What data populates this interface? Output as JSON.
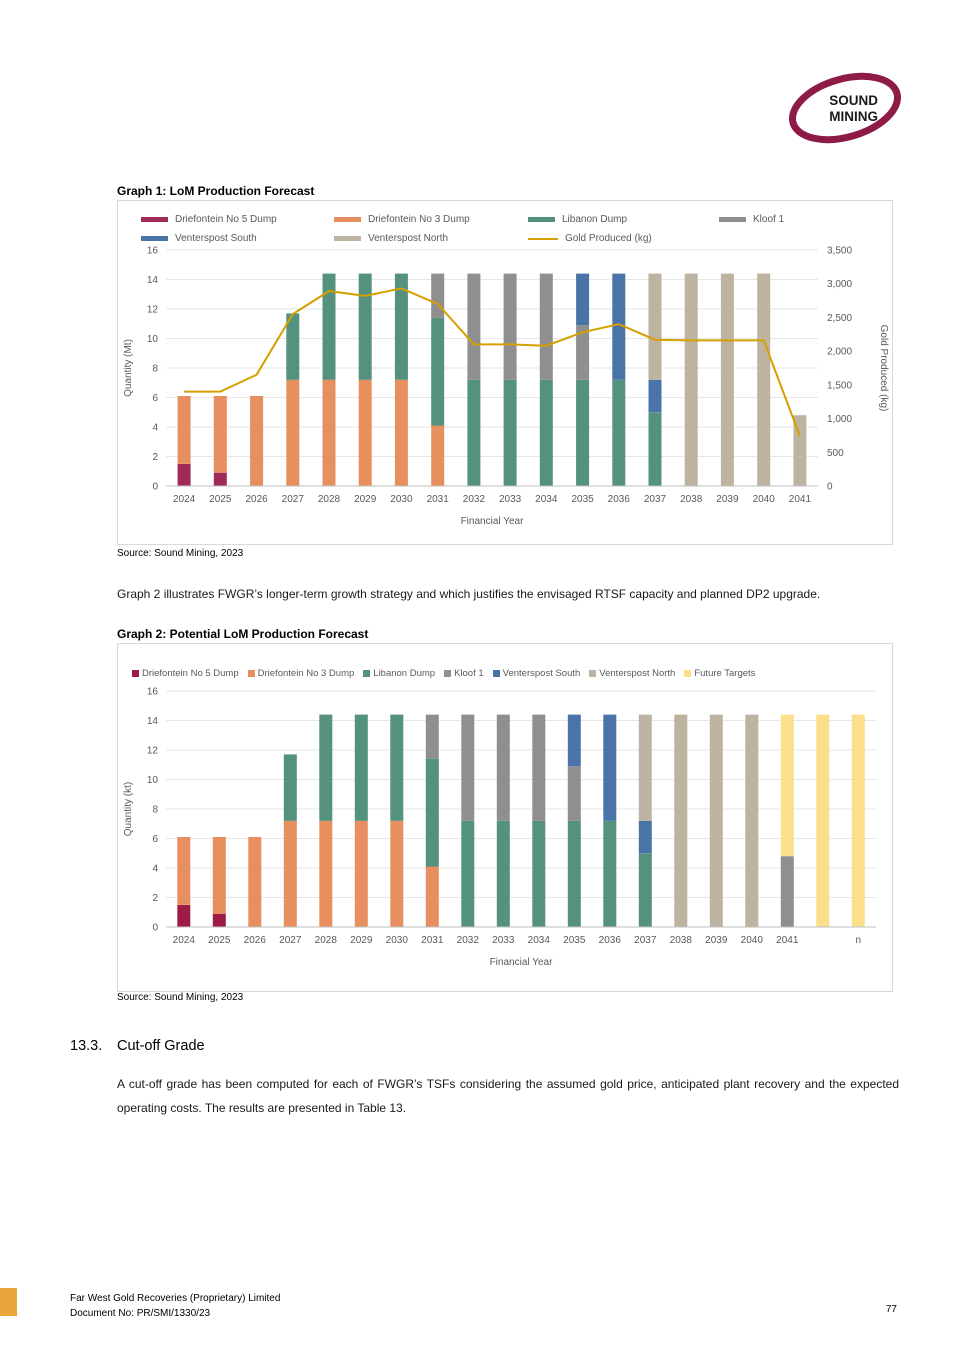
{
  "logo": {
    "line1": "SOUND",
    "line2": "MINING",
    "ring_color": "#8E1A47",
    "text_color": "#1a1a1a"
  },
  "graph1_heading": "Graph 1: LoM Production Forecast",
  "graph2_heading": "Graph 2: Potential LoM Production Forecast",
  "source1": "Source:  Sound Mining, 2023",
  "source2": "Source:  Sound Mining, 2023",
  "paragraph1": "Graph 2 illustrates FWGR’s longer-term growth strategy and which justifies the envisaged RTSF capacity and planned DP2 upgrade.",
  "section": {
    "number": "13.3.",
    "title": "Cut-off Grade",
    "body": "A cut-off grade has been computed for each of FWGR’s TSFs considering the assumed gold price, anticipated plant recovery and the expected operating costs. The results are presented in Table 13."
  },
  "footer": {
    "company": "Far West Gold Recoveries (Proprietary) Limited",
    "doc_no": "Document No: PR/SMI/1330/23",
    "page": "77",
    "accent_color": "#E9A63A"
  },
  "chart_data": [
    {
      "type": "bar",
      "stacked": true,
      "title": "Graph 1: LoM Production Forecast",
      "xlabel": "Financial Year",
      "ylabel": "Quantity (Mt)",
      "y2label": "Gold Produced (kg)",
      "ylim": [
        0,
        16
      ],
      "yticks": [
        0,
        2,
        4,
        6,
        8,
        10,
        12,
        14,
        16
      ],
      "y2lim": [
        0,
        3500
      ],
      "y2ticks": [
        "0",
        "500",
        "1,000",
        "1,500",
        "2,000",
        "2,500",
        "3,000",
        "3,500"
      ],
      "grid": true,
      "legend_position": "top",
      "categories": [
        "2024",
        "2025",
        "2026",
        "2027",
        "2028",
        "2029",
        "2030",
        "2031",
        "2032",
        "2033",
        "2034",
        "2035",
        "2036",
        "2037",
        "2038",
        "2039",
        "2040",
        "2041"
      ],
      "series": [
        {
          "name": "Driefontein No 5 Dump",
          "color": "#A02B58",
          "values": [
            1.5,
            0.9,
            0,
            0,
            0,
            0,
            0,
            0,
            0,
            0,
            0,
            0,
            0,
            0,
            0,
            0,
            0,
            0
          ]
        },
        {
          "name": "Driefontein No 3 Dump",
          "color": "#E78F5F",
          "values": [
            4.6,
            5.2,
            6.1,
            7.2,
            7.2,
            7.2,
            7.2,
            4.1,
            0,
            0,
            0,
            0,
            0,
            0,
            0,
            0,
            0,
            0
          ]
        },
        {
          "name": "Libanon Dump",
          "color": "#54917F",
          "values": [
            0,
            0,
            0,
            4.5,
            7.2,
            7.2,
            7.2,
            7.3,
            7.2,
            7.2,
            7.2,
            7.2,
            7.2,
            5.0,
            0,
            0,
            0,
            0
          ]
        },
        {
          "name": "Kloof 1",
          "color": "#8F8F8F",
          "values": [
            0,
            0,
            0,
            0,
            0,
            0,
            0,
            3.0,
            7.2,
            7.2,
            7.2,
            3.7,
            0,
            0,
            0,
            0,
            0,
            0
          ]
        },
        {
          "name": "Venterspost South",
          "color": "#4A74A8",
          "values": [
            0,
            0,
            0,
            0,
            0,
            0,
            0,
            0,
            0,
            0,
            0,
            3.5,
            7.2,
            2.2,
            0,
            0,
            0,
            0
          ]
        },
        {
          "name": "Venterspost North",
          "color": "#BDB3A0",
          "values": [
            0,
            0,
            0,
            0,
            0,
            0,
            0,
            0,
            0,
            0,
            0,
            0,
            0,
            7.2,
            14.4,
            14.4,
            14.4,
            4.8
          ]
        }
      ],
      "line_series": {
        "name": "Gold Produced (kg)",
        "color": "#D4A000",
        "axis": "y2",
        "values": [
          1400,
          1400,
          1650,
          2550,
          2890,
          2820,
          2930,
          2700,
          2100,
          2100,
          2080,
          2280,
          2400,
          2170,
          2160,
          2160,
          2160,
          740
        ]
      }
    },
    {
      "type": "bar",
      "stacked": true,
      "title": "Graph 2: Potential LoM Production Forecast",
      "xlabel": "Financial Year",
      "ylabel": "Quantity (kt)",
      "ylim": [
        0,
        16
      ],
      "yticks": [
        0,
        2,
        4,
        6,
        8,
        10,
        12,
        14,
        16
      ],
      "grid": true,
      "legend_position": "top",
      "categories": [
        "2024",
        "2025",
        "2026",
        "2027",
        "2028",
        "2029",
        "2030",
        "2031",
        "2032",
        "2033",
        "2034",
        "2035",
        "2036",
        "2037",
        "2038",
        "2039",
        "2040",
        "2041",
        "",
        "n"
      ],
      "series": [
        {
          "name": "Driefontein No 5 Dump",
          "color": "#9E1B46",
          "values": [
            1.5,
            0.9,
            0,
            0,
            0,
            0,
            0,
            0,
            0,
            0,
            0,
            0,
            0,
            0,
            0,
            0,
            0,
            0,
            0,
            0
          ]
        },
        {
          "name": "Driefontein No 3 Dump",
          "color": "#E78F5F",
          "values": [
            4.6,
            5.2,
            6.1,
            7.2,
            7.2,
            7.2,
            7.2,
            4.1,
            0,
            0,
            0,
            0,
            0,
            0,
            0,
            0,
            0,
            0,
            0,
            0
          ]
        },
        {
          "name": "Libanon Dump",
          "color": "#54917F",
          "values": [
            0,
            0,
            0,
            4.5,
            7.2,
            7.2,
            7.2,
            7.3,
            7.2,
            7.2,
            7.2,
            7.2,
            7.2,
            5.0,
            0,
            0,
            0,
            0,
            0,
            0
          ]
        },
        {
          "name": "Kloof 1",
          "color": "#8F8F8F",
          "values": [
            0,
            0,
            0,
            0,
            0,
            0,
            0,
            3.0,
            7.2,
            7.2,
            7.2,
            3.7,
            0,
            0,
            0,
            0,
            0,
            4.8,
            0,
            0
          ]
        },
        {
          "name": "Venterspost South",
          "color": "#4A74A8",
          "values": [
            0,
            0,
            0,
            0,
            0,
            0,
            0,
            0,
            0,
            0,
            0,
            3.5,
            7.2,
            2.2,
            0,
            0,
            0,
            0,
            0,
            0
          ]
        },
        {
          "name": "Venterspost North",
          "color": "#BDB3A0",
          "values": [
            0,
            0,
            0,
            0,
            0,
            0,
            0,
            0,
            0,
            0,
            0,
            0,
            0,
            7.2,
            14.4,
            14.4,
            14.4,
            0,
            0,
            0
          ]
        },
        {
          "name": "Future Targets",
          "color": "#FBDF8B",
          "values": [
            0,
            0,
            0,
            0,
            0,
            0,
            0,
            0,
            0,
            0,
            0,
            0,
            0,
            0,
            0,
            0,
            0,
            9.6,
            14.4,
            14.4
          ]
        }
      ]
    }
  ]
}
